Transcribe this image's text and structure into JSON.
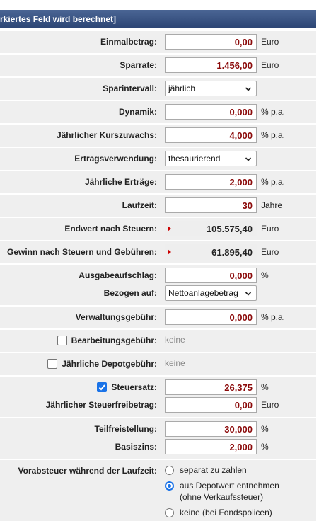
{
  "header": {
    "title": "rkiertes Feld wird berechnet]"
  },
  "rows": [
    {
      "items": [
        {
          "label": "Einmalbetrag:",
          "kind": "input",
          "value": "0,00",
          "unit": "Euro"
        }
      ]
    },
    {
      "items": [
        {
          "label": "Sparrate:",
          "kind": "input",
          "value": "1.456,00",
          "unit": "Euro"
        }
      ]
    },
    {
      "items": [
        {
          "label": "Sparintervall:",
          "kind": "select",
          "value": "jährlich"
        }
      ]
    },
    {
      "items": [
        {
          "label": "Dynamik:",
          "kind": "input",
          "value": "0,000",
          "unit": "% p.a."
        }
      ]
    },
    {
      "items": [
        {
          "label": "Jährlicher Kurszuwachs:",
          "kind": "input",
          "value": "4,000",
          "unit": "% p.a."
        }
      ]
    },
    {
      "items": [
        {
          "label": "Ertragsverwendung:",
          "kind": "select",
          "value": "thesaurierend"
        }
      ]
    },
    {
      "items": [
        {
          "label": "Jährliche Erträge:",
          "kind": "input",
          "value": "2,000",
          "unit": "% p.a."
        }
      ]
    },
    {
      "items": [
        {
          "label": "Laufzeit:",
          "kind": "input",
          "value": "30",
          "unit": "Jahre"
        }
      ]
    },
    {
      "items": [
        {
          "label": "Endwert nach Steuern:",
          "kind": "result",
          "value": "105.575,40",
          "unit": "Euro"
        }
      ]
    },
    {
      "items": [
        {
          "label": "Gewinn nach Steuern und Gebühren:",
          "kind": "result",
          "value": "61.895,40",
          "unit": "Euro"
        }
      ]
    },
    {
      "items": [
        {
          "label": "Ausgabeaufschlag:",
          "kind": "input",
          "value": "0,000",
          "unit": "%"
        },
        {
          "label": "Bezogen auf:",
          "kind": "select",
          "value": "Nettoanlagebetrag"
        }
      ]
    },
    {
      "items": [
        {
          "label": "Verwaltungsgebühr:",
          "kind": "input",
          "value": "0,000",
          "unit": "% p.a."
        }
      ]
    },
    {
      "items": [
        {
          "label": "Bearbeitungsgebühr:",
          "kind": "text",
          "checked": false,
          "value": "keine"
        }
      ]
    },
    {
      "items": [
        {
          "label": "Jährliche Depotgebühr:",
          "kind": "text",
          "checked": false,
          "value": "keine"
        }
      ]
    },
    {
      "items": [
        {
          "label": "Steuersatz:",
          "kind": "input",
          "checked": true,
          "value": "26,375",
          "unit": "%"
        },
        {
          "label": "Jährlicher Steuerfreibetrag:",
          "kind": "input",
          "value": "0,00",
          "unit": "Euro"
        }
      ]
    },
    {
      "items": [
        {
          "label": "Teilfreistellung:",
          "kind": "input",
          "value": "30,000",
          "unit": "%"
        },
        {
          "label": "Basiszins:",
          "kind": "input",
          "value": "2,000",
          "unit": "%"
        }
      ]
    },
    {
      "items": [
        {
          "label": "Vorabsteuer während der Laufzeit:",
          "kind": "radio",
          "options": [
            {
              "lines": [
                "separat zu zahlen"
              ],
              "selected": false
            },
            {
              "lines": [
                "aus Depotwert entnehmen",
                "(ohne Verkaufssteuer)"
              ],
              "selected": true
            },
            {
              "lines": [
                "keine (bei Fondspolicen)"
              ],
              "selected": false
            }
          ]
        }
      ]
    }
  ]
}
